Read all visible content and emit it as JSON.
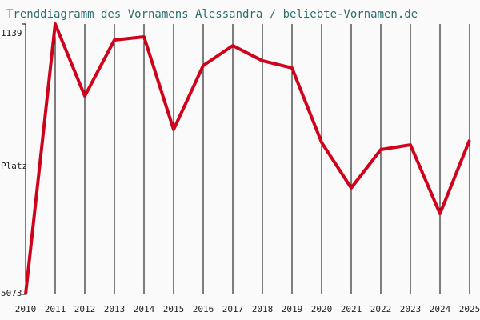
{
  "chart_data": {
    "type": "line",
    "title": "Trenddiagramm des Vornamens Alessandra / beliebte-Vornamen.de",
    "y_label": "Platz",
    "categories": [
      "2010",
      "2011",
      "2012",
      "2013",
      "2014",
      "2015",
      "2016",
      "2017",
      "2018",
      "2019",
      "2020",
      "2021",
      "2022",
      "2023",
      "2024",
      "2025"
    ],
    "values": [
      5073,
      1139,
      2187,
      1372,
      1325,
      2675,
      1744,
      1453,
      1674,
      1779,
      2862,
      3525,
      2966,
      2897,
      3898,
      2827
    ],
    "color": "#d0021b",
    "ylim": [
      5073,
      1139
    ],
    "yticks": [
      1139,
      5073
    ],
    "grid": true
  }
}
